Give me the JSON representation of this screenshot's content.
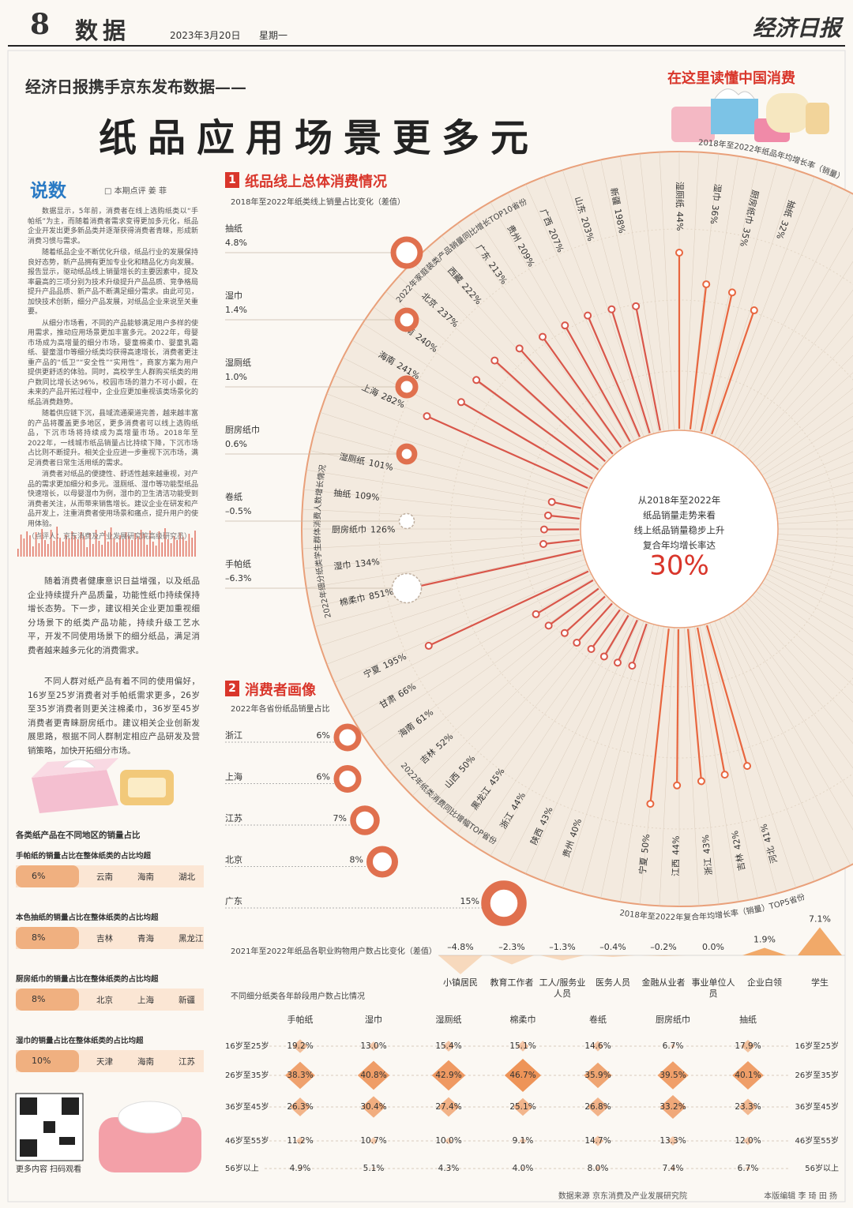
{
  "header": {
    "page_number": "8",
    "section": "数据",
    "date": "2023年3月20日",
    "weekday": "星期一",
    "masthead": "经济日报"
  },
  "headline": {
    "kicker": "经济日报携手京东发布数据——",
    "title": "纸品应用场景更多元",
    "tag": "在这里读懂中国消费"
  },
  "column": {
    "heading": "说数",
    "byline": "□ 本期点评 姜 菲",
    "paragraphs": [
      "数据显示，5年前，消费者在线上选购纸类以“手帕纸”为主，而随着消费者需求变得更加多元化，纸品企业开发出更多新品类并逐渐获得消费者青睐，形成新消费习惯与需求。",
      "随着纸品企业不断优化升级，纸品行业的发展保持良好态势，新产品拥有更加专业化和精品化方向发展。报告显示，驱动纸品线上销量增长的主要因素中，提及率最高的三项分别为技术升级提升产品品质、竞争格局提升产品品质、新产品不断满足细分需求。由此可见，加快技术创新，细分产品发展，对纸品企业来说至关重要。",
      "从细分市场看，不同的产品能够满足用户多样的使用需求，推动应用场景更加丰富多元。2022年，母婴市场成为高增量的细分市场，婴童棉柔巾、婴童乳霜纸、婴童湿巾等细分纸类均获得高速增长，消费者更注重产品的“低卫”“安全性”“实用性”，商家方案为用户提供更舒适的体验。同时，高校学生人群购买纸类的用户数同比增长达96%，校园市场的潜力不可小觑，在未来的产品开拓过程中，企业应更加重视该类场景化的纸品消费趋势。",
      "随着供应链下沉，县域流通渠道完善，越来越丰富的产品将覆盖更多地区，更多消费者可以线上选购纸品，下沉市场将持续成为高增量市场。2018年至2022年，一线城市纸品销量占比持续下降，下沉市场占比则不断提升。相关企业应进一步重视下沉市场，满足消费者日常生活用纸的需求。",
      "消费者对纸品的便捷性、舒适性越来越重视，对产品的需求更加细分和多元。湿厕纸、湿巾等功能型纸品快速增长，以母婴湿巾为例，湿巾的卫生清洁功能受到消费者关注，从而带来销售增长。建议企业在研发和产品开发上，注重消费者使用场景和痛点，提升用户的使用体验。"
    ],
    "note": "（点评人：京东消费及产业发展研究院高级研究员）"
  },
  "commentary": {
    "paragraphs": [
      "随着消费者健康意识日益增强，以及纸品企业持续提升产品质量，功能性纸巾持续保持增长态势。下一步，建议相关企业更加重视细分场景下的纸类产品功能，持续升级工艺水平，开发不同使用场景下的细分纸品，满足消费者越来越多元化的消费需求。",
      "不同人群对纸产品有着不同的使用偏好，16岁至25岁消费者对手帕纸需求更多，26岁至35岁消费者则更关注棉柔巾，36岁至45岁消费者更青睐厨房纸巾。建议相关企业创新发展思路，根据不同人群制定相应产品研发及营销策略，加快开拓细分市场。"
    ]
  },
  "section1": {
    "number": "1",
    "title": "纸品线上总体消费情况"
  },
  "section2": {
    "number": "2",
    "title": "消费者画像"
  },
  "regional": {
    "title": "各类纸产品在不同地区的销量占比",
    "items": [
      {
        "text": "手帕纸的销量占比在整体纸类的占比均超",
        "value": "6%",
        "places": [
          "云南",
          "海南",
          "湖北"
        ]
      },
      {
        "text": "本色抽纸的销量占比在整体纸类的占比均超",
        "value": "8%",
        "places": [
          "吉林",
          "青海",
          "黑龙江"
        ]
      },
      {
        "text": "厨房纸巾的销量占比在整体纸类的占比均超",
        "value": "8%",
        "places": [
          "北京",
          "上海",
          "新疆"
        ]
      },
      {
        "text": "湿巾的销量占比在整体纸类的占比均超",
        "value": "10%",
        "places": [
          "天津",
          "海南",
          "江苏"
        ]
      }
    ]
  },
  "qr": {
    "caption": "更多内容 扫码观看"
  },
  "footer": {
    "source": "数据来源 京东消费及产业发展研究院",
    "editors": "本版编辑 李 琦 田 扬"
  },
  "chart_data": [
    {
      "type": "ring",
      "title": "2018年至2022年纸类线上销量占比变化（差值）",
      "categories": [
        "抽纸",
        "湿巾",
        "湿厕纸",
        "厨房纸巾",
        "卷纸",
        "手帕纸"
      ],
      "values": [
        4.8,
        1.4,
        1.0,
        0.6,
        -0.5,
        -6.3
      ],
      "value_labels": [
        "4.8%",
        "1.4%",
        "1.0%",
        "0.6%",
        "–0.5%",
        "–6.3%"
      ],
      "color": "#e0704e"
    },
    {
      "type": "radial",
      "center_text": [
        "从2018年至2022年",
        "纸品销量走势来看",
        "线上纸品销量稳步上升",
        "复合年均增长率达"
      ],
      "center_value": 30,
      "center_value_label": "30%",
      "series": [
        {
          "name": "2018年至2022年纸品年均增长率（销量）",
          "color": "#e8663f",
          "categories": [
            "湿厕纸",
            "湿巾",
            "厨房纸巾",
            "抽纸"
          ],
          "values": [
            44,
            36,
            35,
            32
          ],
          "value_labels": [
            "44%",
            "36%",
            "35%",
            "32%"
          ]
        },
        {
          "name": "2022年家庭装类产品销量同比增长TOP10省份",
          "color": "#d9564a",
          "categories": [
            "新疆",
            "山东",
            "广西",
            "贵州",
            "广东",
            "西藏",
            "北京",
            "云南",
            "海南",
            "上海"
          ],
          "values": [
            198,
            203,
            207,
            209,
            213,
            222,
            237,
            240,
            241,
            282
          ],
          "value_labels": [
            "198%",
            "203%",
            "207%",
            "209%",
            "213%",
            "222%",
            "237%",
            "240%",
            "241%",
            "282%"
          ]
        },
        {
          "name": "2022年细分纸类学生群体消费人数增长情况",
          "color": "#d9564a",
          "categories": [
            "湿厕纸",
            "抽纸",
            "厨房纸巾",
            "湿巾",
            "棉柔巾"
          ],
          "values": [
            101,
            109,
            126,
            134,
            851
          ],
          "value_labels": [
            "101%",
            "109%",
            "126%",
            "134%",
            "851%"
          ]
        },
        {
          "name": "2022年纸类消费同比增幅TOP省份",
          "color": "#d9564a",
          "categories": [
            "宁夏",
            "甘肃",
            "海南",
            "吉林",
            "山西",
            "黑龙江",
            "浙江",
            "陕西",
            "贵州"
          ],
          "values": [
            195,
            66,
            61,
            52,
            50,
            45,
            44,
            43,
            40
          ],
          "value_labels": [
            "195%",
            "66%",
            "61%",
            "52%",
            "50%",
            "45%",
            "44%",
            "43%",
            "40%"
          ]
        },
        {
          "name": "2018年至2022年复合年均增长率（销量）TOP5省份",
          "color": "#e8663f",
          "categories": [
            "宁夏",
            "江西",
            "浙江",
            "吉林",
            "河北"
          ],
          "values": [
            50,
            44,
            43,
            42,
            41
          ],
          "value_labels": [
            "50%",
            "44%",
            "43%",
            "42%",
            "41%"
          ]
        }
      ]
    },
    {
      "type": "lollipop",
      "title": "2022年各省份纸品销量占比",
      "categories": [
        "浙江",
        "上海",
        "江苏",
        "北京",
        "广东"
      ],
      "values": [
        6,
        6,
        7,
        8,
        15
      ],
      "value_labels": [
        "6%",
        "6%",
        "7%",
        "8%",
        "15%"
      ],
      "color": "#e0704e"
    },
    {
      "type": "triangle",
      "title": "2021年至2022年纸品各职业购物用户数占比变化（差值）",
      "categories": [
        "小镇居民",
        "教育工作者",
        "工人/服务业人员",
        "医务人员",
        "金融从业者",
        "事业单位人员",
        "企业白领",
        "学生"
      ],
      "values": [
        -4.8,
        -2.3,
        -1.3,
        -0.4,
        -0.2,
        0.0,
        1.9,
        7.1
      ],
      "value_labels": [
        "–4.8%",
        "–2.3%",
        "–1.3%",
        "–0.4%",
        "–0.2%",
        "0.0%",
        "1.9%",
        "7.1%"
      ],
      "color": "#f0a05a"
    },
    {
      "type": "diamond",
      "title": "不同细分纸类各年龄段用户数占比情况",
      "categories": [
        "手帕纸",
        "湿巾",
        "湿厕纸",
        "棉柔巾",
        "卷纸",
        "厨房纸巾",
        "抽纸"
      ],
      "rows": [
        "16岁至25岁",
        "26岁至35岁",
        "36岁至45岁",
        "46岁至55岁",
        "56岁以上"
      ],
      "values": [
        [
          19.2,
          13.0,
          15.4,
          15.1,
          14.6,
          6.7,
          17.9
        ],
        [
          38.3,
          40.8,
          42.9,
          46.7,
          35.9,
          39.5,
          40.1
        ],
        [
          26.3,
          30.4,
          27.4,
          25.1,
          26.8,
          33.2,
          23.3
        ],
        [
          11.2,
          10.7,
          10.0,
          9.1,
          14.7,
          13.3,
          12.0
        ],
        [
          4.9,
          5.1,
          4.3,
          4.0,
          8.0,
          7.4,
          6.7
        ]
      ],
      "value_labels": [
        [
          "19.2%",
          "13.0%",
          "15.4%",
          "15.1%",
          "14.6%",
          "6.7%",
          "17.9%"
        ],
        [
          "38.3%",
          "40.8%",
          "42.9%",
          "46.7%",
          "35.9%",
          "39.5%",
          "40.1%"
        ],
        [
          "26.3%",
          "30.4%",
          "27.4%",
          "25.1%",
          "26.8%",
          "33.2%",
          "23.3%"
        ],
        [
          "11.2%",
          "10.7%",
          "10.0%",
          "9.1%",
          "14.7%",
          "13.3%",
          "12.0%"
        ],
        [
          "4.9%",
          "5.1%",
          "4.3%",
          "4.0%",
          "8.0%",
          "7.4%",
          "6.7%"
        ]
      ],
      "color": "#ec8a4a"
    }
  ]
}
